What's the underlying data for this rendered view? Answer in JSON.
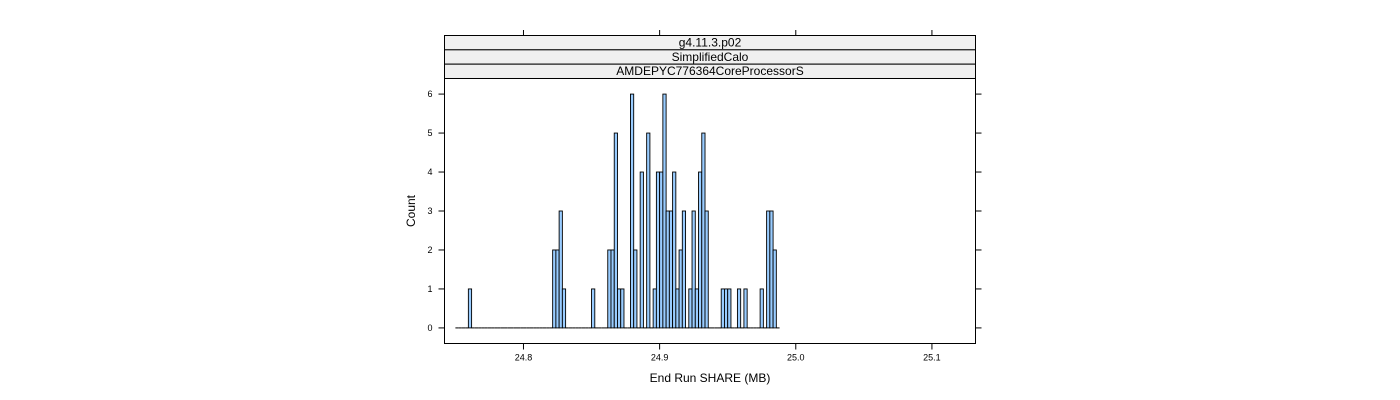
{
  "chart_data": {
    "type": "bar",
    "strips": [
      "g4.11.3.p02",
      "SimplifiedCalo",
      "AMDEPYC776364CoreProcessorS"
    ],
    "xlabel": "End Run SHARE (MB)",
    "ylabel": "Count",
    "xlim": [
      24.742,
      25.132
    ],
    "ylim": [
      -0.4,
      6.4
    ],
    "x_ticks": [
      24.8,
      24.9,
      25.0,
      25.1
    ],
    "x_tick_labels": [
      "24.8",
      "24.9",
      "25.0",
      "25.1"
    ],
    "y_ticks": [
      0,
      1,
      2,
      3,
      4,
      5,
      6
    ],
    "y_tick_labels": [
      "0",
      "1",
      "2",
      "3",
      "4",
      "5",
      "6"
    ],
    "bin_start": 24.75,
    "bin_width": 0.002381,
    "counts": [
      0,
      0,
      0,
      0,
      1,
      0,
      0,
      0,
      0,
      0,
      0,
      0,
      0,
      0,
      0,
      0,
      0,
      0,
      0,
      0,
      0,
      0,
      0,
      0,
      0,
      0,
      0,
      0,
      0,
      0,
      2,
      2,
      3,
      1,
      0,
      0,
      0,
      0,
      0,
      0,
      0,
      0,
      1,
      0,
      0,
      0,
      0,
      2,
      2,
      5,
      1,
      1,
      0,
      0,
      6,
      2,
      0,
      4,
      0,
      5,
      0,
      1,
      4,
      4,
      6,
      3,
      3,
      4,
      1,
      2,
      3,
      0,
      1,
      3,
      1,
      4,
      5,
      3,
      0,
      0,
      0,
      0,
      1,
      1,
      1,
      0,
      0,
      1,
      0,
      1,
      0,
      0,
      0,
      0,
      1,
      0,
      3,
      3,
      2,
      0
    ],
    "bar_color": "#99ccff",
    "grid": false
  }
}
